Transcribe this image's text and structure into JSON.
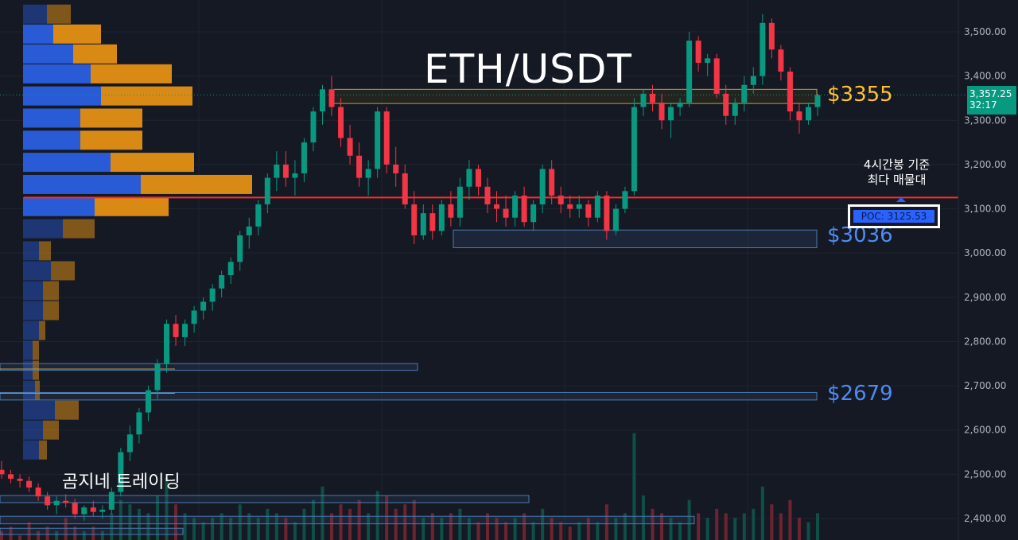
{
  "title": "ETH/USDT",
  "watermark": "곰지네 트레이딩",
  "price_tag": {
    "price": "3,357.25",
    "countdown": "32:17"
  },
  "levels": [
    {
      "label": "$3355",
      "value": 3355,
      "color": "#ffc233"
    },
    {
      "label": "$3036",
      "value": 3036,
      "color": "#4d8cf5"
    },
    {
      "label": "$2679",
      "value": 2679,
      "color": "#4d8cf5"
    }
  ],
  "poc": {
    "note_line1": "4시간봉 기준",
    "note_line2": "최다 매물대",
    "label": "POC: 3125.53",
    "value": 3125.53,
    "color": "#ff2b2b"
  },
  "colors": {
    "up": "#089981",
    "down": "#f23645",
    "vp_up": "#2a5bd7",
    "vp_down": "#d98a14"
  },
  "chart_data": {
    "type": "candlestick",
    "y_axis": {
      "ticks": [
        "3,500.00",
        "3,400.00",
        "3,300.00",
        "3,200.00",
        "3,100.00",
        "3,000.00",
        "2,900.00",
        "2,800.00",
        "2,700.00",
        "2,600.00",
        "2,500.00",
        "2,400.00"
      ],
      "ylim": [
        2370,
        3560
      ]
    },
    "series": [
      {
        "values": [
          [
            2510,
            2530,
            2490,
            2500
          ],
          [
            2500,
            2510,
            2480,
            2490
          ],
          [
            2490,
            2500,
            2470,
            2485
          ],
          [
            2485,
            2495,
            2460,
            2470
          ],
          [
            2470,
            2480,
            2440,
            2450
          ],
          [
            2450,
            2460,
            2420,
            2430
          ],
          [
            2430,
            2450,
            2410,
            2440
          ],
          [
            2440,
            2455,
            2425,
            2435
          ],
          [
            2435,
            2445,
            2400,
            2410
          ],
          [
            2410,
            2430,
            2395,
            2425
          ],
          [
            2425,
            2440,
            2405,
            2415
          ],
          [
            2415,
            2430,
            2400,
            2420
          ],
          [
            2420,
            2470,
            2410,
            2460
          ],
          [
            2460,
            2560,
            2450,
            2550
          ],
          [
            2550,
            2610,
            2530,
            2590
          ],
          [
            2590,
            2650,
            2570,
            2640
          ],
          [
            2640,
            2700,
            2620,
            2690
          ],
          [
            2690,
            2760,
            2670,
            2750
          ],
          [
            2750,
            2850,
            2730,
            2840
          ],
          [
            2840,
            2860,
            2790,
            2810
          ],
          [
            2810,
            2850,
            2790,
            2840
          ],
          [
            2840,
            2880,
            2820,
            2870
          ],
          [
            2870,
            2900,
            2850,
            2890
          ],
          [
            2890,
            2930,
            2870,
            2920
          ],
          [
            2920,
            2960,
            2900,
            2950
          ],
          [
            2950,
            2990,
            2930,
            2980
          ],
          [
            2980,
            3050,
            2960,
            3040
          ],
          [
            3040,
            3080,
            3010,
            3060
          ],
          [
            3060,
            3120,
            3040,
            3110
          ],
          [
            3110,
            3180,
            3090,
            3170
          ],
          [
            3170,
            3230,
            3140,
            3200
          ],
          [
            3200,
            3230,
            3150,
            3170
          ],
          [
            3170,
            3210,
            3130,
            3180
          ],
          [
            3180,
            3260,
            3160,
            3250
          ],
          [
            3250,
            3330,
            3230,
            3320
          ],
          [
            3320,
            3380,
            3290,
            3370
          ],
          [
            3370,
            3400,
            3310,
            3330
          ],
          [
            3330,
            3350,
            3240,
            3260
          ],
          [
            3260,
            3290,
            3200,
            3220
          ],
          [
            3220,
            3250,
            3150,
            3170
          ],
          [
            3170,
            3210,
            3130,
            3190
          ],
          [
            3190,
            3330,
            3170,
            3320
          ],
          [
            3320,
            3330,
            3180,
            3200
          ],
          [
            3200,
            3240,
            3150,
            3180
          ],
          [
            3180,
            3200,
            3100,
            3110
          ],
          [
            3110,
            3140,
            3020,
            3040
          ],
          [
            3040,
            3110,
            3030,
            3090
          ],
          [
            3090,
            3110,
            3030,
            3050
          ],
          [
            3050,
            3120,
            3040,
            3110
          ],
          [
            3110,
            3140,
            3060,
            3080
          ],
          [
            3080,
            3170,
            3060,
            3150
          ],
          [
            3150,
            3210,
            3120,
            3190
          ],
          [
            3190,
            3200,
            3130,
            3150
          ],
          [
            3150,
            3170,
            3090,
            3110
          ],
          [
            3110,
            3140,
            3070,
            3100
          ],
          [
            3100,
            3130,
            3060,
            3080
          ],
          [
            3080,
            3140,
            3060,
            3130
          ],
          [
            3130,
            3150,
            3060,
            3070
          ],
          [
            3070,
            3120,
            3050,
            3110
          ],
          [
            3110,
            3200,
            3090,
            3190
          ],
          [
            3190,
            3210,
            3110,
            3130
          ],
          [
            3130,
            3150,
            3090,
            3110
          ],
          [
            3110,
            3130,
            3080,
            3100
          ],
          [
            3100,
            3130,
            3080,
            3110
          ],
          [
            3110,
            3120,
            3060,
            3080
          ],
          [
            3080,
            3140,
            3070,
            3130
          ],
          [
            3130,
            3140,
            3030,
            3050
          ],
          [
            3050,
            3110,
            3040,
            3100
          ],
          [
            3100,
            3150,
            3090,
            3140
          ],
          [
            3140,
            3350,
            3130,
            3330
          ],
          [
            3330,
            3370,
            3310,
            3360
          ],
          [
            3360,
            3380,
            3320,
            3340
          ],
          [
            3340,
            3360,
            3280,
            3300
          ],
          [
            3300,
            3340,
            3260,
            3330
          ],
          [
            3330,
            3350,
            3310,
            3340
          ],
          [
            3340,
            3500,
            3330,
            3480
          ],
          [
            3480,
            3490,
            3410,
            3430
          ],
          [
            3430,
            3450,
            3400,
            3440
          ],
          [
            3440,
            3450,
            3350,
            3360
          ],
          [
            3360,
            3380,
            3290,
            3310
          ],
          [
            3310,
            3350,
            3290,
            3340
          ],
          [
            3340,
            3400,
            3320,
            3380
          ],
          [
            3380,
            3420,
            3360,
            3400
          ],
          [
            3400,
            3540,
            3380,
            3520
          ],
          [
            3520,
            3530,
            3440,
            3460
          ],
          [
            3460,
            3470,
            3390,
            3410
          ],
          [
            3410,
            3420,
            3300,
            3320
          ],
          [
            3320,
            3340,
            3270,
            3300
          ],
          [
            3300,
            3340,
            3290,
            3330
          ],
          [
            3330,
            3360,
            3310,
            3357
          ]
        ]
      }
    ],
    "volume_profile": [
      {
        "y": 3540,
        "up": 30,
        "down": 30
      },
      {
        "y": 3495,
        "up": 38,
        "down": 60
      },
      {
        "y": 3450,
        "up": 63,
        "down": 55
      },
      {
        "y": 3405,
        "up": 85,
        "down": 102
      },
      {
        "y": 3355,
        "up": 98,
        "down": 115
      },
      {
        "y": 3305,
        "up": 72,
        "down": 78
      },
      {
        "y": 3255,
        "up": 72,
        "down": 78
      },
      {
        "y": 3205,
        "up": 110,
        "down": 105
      },
      {
        "y": 3155,
        "up": 148,
        "down": 140
      },
      {
        "y": 3105,
        "up": 90,
        "down": 93
      },
      {
        "y": 3055,
        "up": 50,
        "down": 40
      },
      {
        "y": 3005,
        "up": 20,
        "down": 15
      },
      {
        "y": 2960,
        "up": 35,
        "down": 30
      },
      {
        "y": 2915,
        "up": 25,
        "down": 20
      },
      {
        "y": 2870,
        "up": 25,
        "down": 20
      },
      {
        "y": 2825,
        "up": 20,
        "down": 8
      },
      {
        "y": 2780,
        "up": 12,
        "down": 8
      },
      {
        "y": 2735,
        "up": 12,
        "down": 8
      },
      {
        "y": 2690,
        "up": 15,
        "down": 6
      },
      {
        "y": 2645,
        "up": 40,
        "down": 30
      },
      {
        "y": 2600,
        "up": 25,
        "down": 20
      },
      {
        "y": 2555,
        "up": 20,
        "down": 10
      }
    ],
    "volumes": [
      2,
      3,
      1,
      4,
      2,
      3,
      2,
      5,
      3,
      2,
      3,
      2,
      6,
      9,
      8,
      7,
      6,
      10,
      14,
      8,
      6,
      5,
      4,
      5,
      6,
      5,
      8,
      6,
      5,
      7,
      6,
      5,
      4,
      7,
      9,
      12,
      6,
      8,
      7,
      9,
      6,
      11,
      10,
      7,
      8,
      9,
      5,
      6,
      5,
      6,
      7,
      5,
      4,
      6,
      5,
      4,
      5,
      6,
      4,
      7,
      5,
      4,
      3,
      4,
      5,
      4,
      8,
      5,
      6,
      24,
      10,
      7,
      6,
      5,
      4,
      9,
      6,
      5,
      7,
      6,
      5,
      6,
      7,
      12,
      8,
      6,
      9,
      5,
      4,
      6
    ]
  }
}
